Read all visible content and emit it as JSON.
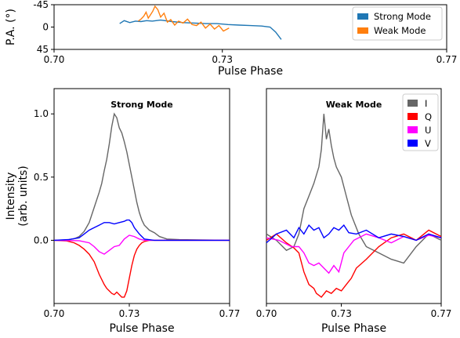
{
  "chart_data": [
    {
      "type": "line",
      "title": "",
      "xlabel": "Pulse Phase",
      "ylabel": "P.A. (°)",
      "xlim": [
        0.7,
        0.77
      ],
      "ylim": [
        45,
        -45
      ],
      "xticks": [
        "0.70",
        "0.73",
        "0.77"
      ],
      "yticks": [
        "-45",
        "0",
        "45"
      ],
      "legend_position": "upper-right",
      "series": [
        {
          "name": "Strong Mode",
          "color": "#1f77b4",
          "x": [
            0.7117,
            0.7125,
            0.7135,
            0.7145,
            0.7155,
            0.7165,
            0.7175,
            0.719,
            0.721,
            0.723,
            0.725,
            0.727,
            0.729,
            0.731,
            0.733,
            0.735,
            0.737,
            0.7385,
            0.7395,
            0.7405
          ],
          "y": [
            -7,
            -13,
            -9,
            -12,
            -11,
            -13,
            -12,
            -14,
            -11,
            -9,
            -8,
            -7,
            -7,
            -5,
            -4,
            -3,
            -2,
            0,
            10,
            25
          ]
        },
        {
          "name": "Weak Mode",
          "color": "#ff7f0e",
          "x": [
            0.715,
            0.7155,
            0.716,
            0.7164,
            0.7168,
            0.7172,
            0.7176,
            0.718,
            0.7185,
            0.719,
            0.7196,
            0.7202,
            0.7208,
            0.7215,
            0.7222,
            0.723,
            0.7238,
            0.7246,
            0.7254,
            0.7262,
            0.727,
            0.7278,
            0.7286,
            0.7294,
            0.7302,
            0.7312
          ],
          "y": [
            -12,
            -16,
            -22,
            -30,
            -18,
            -25,
            -32,
            -42,
            -35,
            -20,
            -28,
            -10,
            -15,
            -4,
            -12,
            -8,
            -16,
            -5,
            -3,
            -10,
            2,
            -6,
            4,
            -3,
            8,
            2
          ]
        }
      ]
    },
    {
      "type": "line",
      "title": "Strong Mode",
      "xlabel": "Pulse Phase",
      "ylabel": "Intensity\n(arb. units)",
      "xlim": [
        0.7,
        0.77
      ],
      "ylim": [
        -0.5,
        1.2
      ],
      "xticks": [
        "0.70",
        "0.73",
        "0.77"
      ],
      "yticks": [
        "0.0",
        "0.5",
        "1.0"
      ],
      "series": [
        {
          "name": "I",
          "color": "#666666",
          "x": [
            0.7,
            0.705,
            0.708,
            0.71,
            0.712,
            0.714,
            0.716,
            0.718,
            0.719,
            0.72,
            0.721,
            0.722,
            0.723,
            0.724,
            0.725,
            0.726,
            0.727,
            0.728,
            0.729,
            0.73,
            0.731,
            0.732,
            0.733,
            0.734,
            0.735,
            0.736,
            0.738,
            0.74,
            0.742,
            0.745,
            0.75,
            0.77
          ],
          "y": [
            0.0,
            0.003,
            0.012,
            0.03,
            0.07,
            0.14,
            0.26,
            0.38,
            0.45,
            0.55,
            0.64,
            0.76,
            0.9,
            1.0,
            0.97,
            0.89,
            0.85,
            0.78,
            0.7,
            0.6,
            0.5,
            0.4,
            0.3,
            0.22,
            0.16,
            0.12,
            0.08,
            0.06,
            0.03,
            0.01,
            0.005,
            0.0
          ]
        },
        {
          "name": "Q",
          "color": "#ff0000",
          "x": [
            0.7,
            0.705,
            0.708,
            0.71,
            0.712,
            0.714,
            0.716,
            0.718,
            0.72,
            0.721,
            0.722,
            0.723,
            0.724,
            0.725,
            0.726,
            0.727,
            0.728,
            0.729,
            0.73,
            0.731,
            0.732,
            0.733,
            0.734,
            0.735,
            0.736,
            0.738,
            0.74,
            0.745,
            0.77
          ],
          "y": [
            0.0,
            -0.005,
            -0.02,
            -0.04,
            -0.07,
            -0.11,
            -0.17,
            -0.27,
            -0.35,
            -0.38,
            -0.4,
            -0.42,
            -0.43,
            -0.41,
            -0.43,
            -0.45,
            -0.45,
            -0.4,
            -0.3,
            -0.2,
            -0.12,
            -0.07,
            -0.04,
            -0.02,
            -0.01,
            0.0,
            0.0,
            0.0,
            0.0
          ]
        },
        {
          "name": "U",
          "color": "#ff00ff",
          "x": [
            0.7,
            0.71,
            0.714,
            0.716,
            0.718,
            0.72,
            0.722,
            0.724,
            0.726,
            0.728,
            0.73,
            0.732,
            0.734,
            0.736,
            0.74,
            0.77
          ],
          "y": [
            0.0,
            -0.003,
            -0.02,
            -0.05,
            -0.09,
            -0.11,
            -0.08,
            -0.05,
            -0.04,
            0.01,
            0.04,
            0.03,
            0.01,
            0.0,
            0.0,
            0.0
          ]
        },
        {
          "name": "V",
          "color": "#0000ff",
          "x": [
            0.7,
            0.706,
            0.71,
            0.712,
            0.714,
            0.716,
            0.718,
            0.72,
            0.722,
            0.724,
            0.726,
            0.728,
            0.729,
            0.73,
            0.731,
            0.732,
            0.734,
            0.736,
            0.74,
            0.77
          ],
          "y": [
            0.0,
            0.006,
            0.02,
            0.05,
            0.08,
            0.1,
            0.12,
            0.14,
            0.14,
            0.13,
            0.14,
            0.15,
            0.16,
            0.16,
            0.14,
            0.1,
            0.05,
            0.01,
            0.0,
            0.0
          ]
        }
      ]
    },
    {
      "type": "line",
      "title": "Weak Mode",
      "xlabel": "Pulse Phase",
      "ylabel": "",
      "xlim": [
        0.7,
        0.77
      ],
      "ylim": [
        -0.5,
        1.2
      ],
      "xticks": [
        "0.70",
        "0.73",
        "0.77"
      ],
      "yticks": [],
      "legend_position": "upper-right",
      "series": [
        {
          "name": "I",
          "color": "#666666",
          "x": [
            0.7,
            0.704,
            0.708,
            0.711,
            0.713,
            0.715,
            0.717,
            0.719,
            0.721,
            0.722,
            0.723,
            0.724,
            0.725,
            0.726,
            0.727,
            0.728,
            0.73,
            0.732,
            0.734,
            0.737,
            0.74,
            0.745,
            0.75,
            0.755,
            0.76,
            0.765,
            0.77
          ],
          "y": [
            0.05,
            0.0,
            -0.08,
            -0.05,
            0.05,
            0.25,
            0.35,
            0.45,
            0.58,
            0.72,
            1.0,
            0.8,
            0.88,
            0.75,
            0.65,
            0.58,
            0.5,
            0.35,
            0.2,
            0.05,
            -0.05,
            -0.1,
            -0.15,
            -0.18,
            -0.05,
            0.05,
            0.0
          ]
        },
        {
          "name": "Q",
          "color": "#ff0000",
          "x": [
            0.7,
            0.704,
            0.708,
            0.711,
            0.713,
            0.715,
            0.717,
            0.719,
            0.72,
            0.722,
            0.724,
            0.726,
            0.728,
            0.73,
            0.732,
            0.734,
            0.736,
            0.74,
            0.745,
            0.75,
            0.755,
            0.76,
            0.765,
            0.77
          ],
          "y": [
            0.0,
            0.05,
            -0.02,
            -0.06,
            -0.1,
            -0.25,
            -0.35,
            -0.38,
            -0.42,
            -0.45,
            -0.4,
            -0.42,
            -0.38,
            -0.4,
            -0.35,
            -0.3,
            -0.22,
            -0.15,
            -0.05,
            0.02,
            0.05,
            0.0,
            0.08,
            0.03
          ]
        },
        {
          "name": "U",
          "color": "#ff00ff",
          "x": [
            0.7,
            0.705,
            0.71,
            0.713,
            0.715,
            0.717,
            0.719,
            0.721,
            0.723,
            0.725,
            0.727,
            0.729,
            0.731,
            0.733,
            0.735,
            0.74,
            0.745,
            0.75,
            0.755,
            0.76,
            0.765,
            0.77
          ],
          "y": [
            0.02,
            0.0,
            -0.05,
            -0.05,
            -0.1,
            -0.18,
            -0.2,
            -0.18,
            -0.22,
            -0.26,
            -0.2,
            -0.25,
            -0.1,
            -0.05,
            0.0,
            0.05,
            0.02,
            -0.02,
            0.03,
            0.0,
            0.04,
            0.02
          ]
        },
        {
          "name": "V",
          "color": "#0000ff",
          "x": [
            0.7,
            0.704,
            0.708,
            0.711,
            0.713,
            0.715,
            0.717,
            0.719,
            0.721,
            0.723,
            0.725,
            0.727,
            0.729,
            0.731,
            0.733,
            0.736,
            0.74,
            0.745,
            0.75,
            0.755,
            0.76,
            0.765,
            0.77
          ],
          "y": [
            -0.02,
            0.05,
            0.08,
            0.02,
            0.1,
            0.05,
            0.12,
            0.08,
            0.1,
            0.02,
            0.05,
            0.1,
            0.08,
            0.12,
            0.06,
            0.05,
            0.08,
            0.02,
            0.05,
            0.03,
            0.0,
            0.05,
            0.02
          ]
        }
      ]
    }
  ]
}
